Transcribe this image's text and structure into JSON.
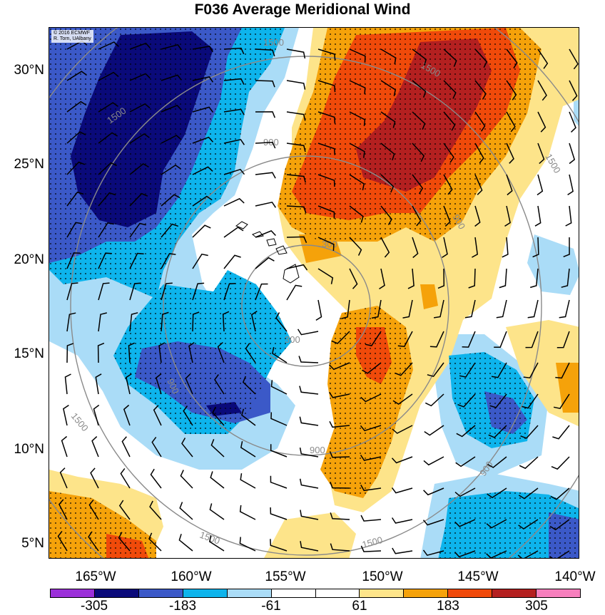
{
  "title": "F036 Average Meridional Wind",
  "credit_line1": "© 2016 ECMWF",
  "credit_line2": "R. Torn, UAlbany",
  "lat_labels": [
    "30°N",
    "25°N",
    "20°N",
    "15°N",
    "10°N",
    "5°N"
  ],
  "lon_labels": [
    "165°W",
    "160°W",
    "155°W",
    "150°W",
    "145°W",
    "140°W"
  ],
  "contour_labels": [
    "1500",
    "1500",
    "1500",
    "900",
    "900",
    "900",
    "900",
    "300",
    "300",
    "900",
    "1500",
    "1500",
    "1500",
    "1500"
  ],
  "colorbar": {
    "colors": [
      "#9b30d9",
      "#0a0a7a",
      "#3b59c8",
      "#0db4ec",
      "#aadcf7",
      "#ffffff",
      "#ffffff",
      "#fde48a",
      "#f5a20a",
      "#f04a0a",
      "#b42020",
      "#f77fbd"
    ],
    "labels": [
      "-305",
      "-183",
      "-61",
      "61",
      "183",
      "305"
    ]
  }
}
